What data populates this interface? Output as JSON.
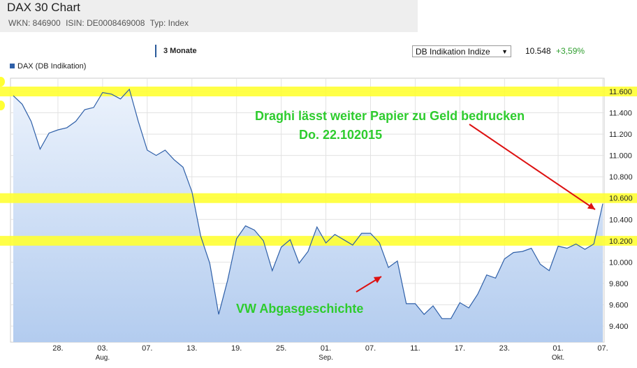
{
  "header": {
    "title": "DAX 30 Chart",
    "wkn": "WKN: 846900",
    "isin": "ISIN: DE0008469008",
    "typ": "Typ: Index"
  },
  "controls": {
    "period": "3 Monate",
    "select_value": "DB Indikation Indize",
    "quote_value": "10.548",
    "quote_change": "+3,59%"
  },
  "chart_data": {
    "type": "area",
    "legend": [
      "DAX (DB Indikation)"
    ],
    "ylim": [
      9200,
      11850
    ],
    "y_ticks": [
      9400,
      9600,
      9800,
      10000,
      10200,
      10400,
      10600,
      10800,
      11000,
      11200,
      11400,
      11600
    ],
    "y_tick_labels": [
      "9.400",
      "9.600",
      "9.800",
      "10.000",
      "10.200",
      "10.400",
      "10.600",
      "10.800",
      "11.000",
      "11.200",
      "11.400",
      "11.600"
    ],
    "x_ticks": [
      {
        "i": 5,
        "label": "28."
      },
      {
        "i": 10,
        "label": "03.",
        "sub": "Aug."
      },
      {
        "i": 15,
        "label": "07."
      },
      {
        "i": 20,
        "label": "13."
      },
      {
        "i": 25,
        "label": "19."
      },
      {
        "i": 30,
        "label": "25."
      },
      {
        "i": 35,
        "label": "01.",
        "sub": "Sep."
      },
      {
        "i": 40,
        "label": "07."
      },
      {
        "i": 45,
        "label": "11."
      },
      {
        "i": 50,
        "label": "17."
      },
      {
        "i": 55,
        "label": "23."
      },
      {
        "i": 61,
        "label": "01.",
        "sub": "Okt."
      },
      {
        "i": 66,
        "label": "07."
      },
      {
        "i": 71,
        "label": "13."
      },
      {
        "i": 76,
        "label": "19."
      }
    ],
    "series": [
      {
        "name": "DAX (DB Indikation)",
        "color": "#2e5fa8",
        "values": [
          11560,
          11480,
          11320,
          11060,
          11210,
          11240,
          11260,
          11320,
          11430,
          11450,
          11590,
          11575,
          11530,
          11620,
          11320,
          11050,
          11000,
          11050,
          10960,
          10890,
          10660,
          10240,
          9990,
          9510,
          9830,
          10220,
          10340,
          10300,
          10200,
          9920,
          10140,
          10210,
          9990,
          10100,
          10330,
          10180,
          10260,
          10210,
          10160,
          10270,
          10270,
          10180,
          9950,
          10010,
          9610,
          9610,
          9510,
          9590,
          9470,
          9470,
          9620,
          9570,
          9700,
          9880,
          9850,
          10030,
          10090,
          10100,
          10130,
          9980,
          9920,
          10150,
          10130,
          10170,
          10120,
          10170,
          10548
        ]
      }
    ],
    "highlight_bands": [
      11600,
      10600,
      10200
    ],
    "annotations": [
      {
        "text": "Draghi lässt weiter Papier zu Geld bedrucken",
        "color": "#2ecc2e"
      },
      {
        "text": "Do. 22.102015",
        "color": "#2ecc2e"
      },
      {
        "text": "VW Abgasgeschichte",
        "color": "#2ecc2e"
      }
    ],
    "colors": {
      "band": "#ffff33",
      "arrow": "#dd1111",
      "area_top": "#ebf2fc",
      "area_bottom": "#b3ccef",
      "grid": "#e2e2e2"
    }
  }
}
